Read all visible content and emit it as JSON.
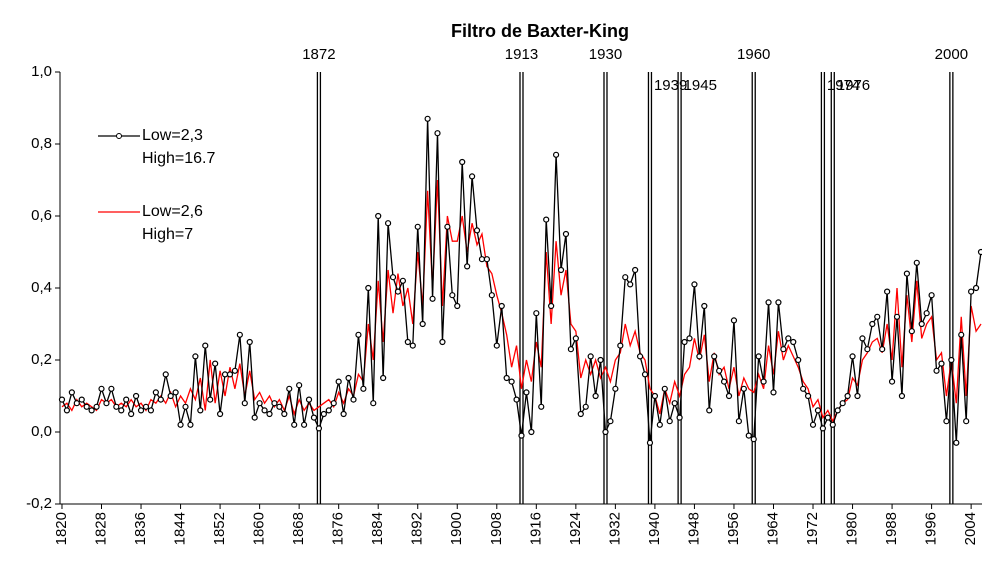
{
  "chart_data": {
    "type": "line",
    "title": "Filtro de Baxter-King",
    "x": [
      1820,
      1821,
      1822,
      1823,
      1824,
      1825,
      1826,
      1827,
      1828,
      1829,
      1830,
      1831,
      1832,
      1833,
      1834,
      1835,
      1836,
      1837,
      1838,
      1839,
      1840,
      1841,
      1842,
      1843,
      1844,
      1845,
      1846,
      1847,
      1848,
      1849,
      1850,
      1851,
      1852,
      1853,
      1854,
      1855,
      1856,
      1857,
      1858,
      1859,
      1860,
      1861,
      1862,
      1863,
      1864,
      1865,
      1866,
      1867,
      1868,
      1869,
      1870,
      1871,
      1872,
      1873,
      1874,
      1875,
      1876,
      1877,
      1878,
      1879,
      1880,
      1881,
      1882,
      1883,
      1884,
      1885,
      1886,
      1887,
      1888,
      1889,
      1890,
      1891,
      1892,
      1893,
      1894,
      1895,
      1896,
      1897,
      1898,
      1899,
      1900,
      1901,
      1902,
      1903,
      1904,
      1905,
      1906,
      1907,
      1908,
      1909,
      1910,
      1911,
      1912,
      1913,
      1914,
      1915,
      1916,
      1917,
      1918,
      1919,
      1920,
      1921,
      1922,
      1923,
      1924,
      1925,
      1926,
      1927,
      1928,
      1929,
      1930,
      1931,
      1932,
      1933,
      1934,
      1935,
      1936,
      1937,
      1938,
      1939,
      1940,
      1941,
      1942,
      1943,
      1944,
      1945,
      1946,
      1947,
      1948,
      1949,
      1950,
      1951,
      1952,
      1953,
      1954,
      1955,
      1956,
      1957,
      1958,
      1959,
      1960,
      1961,
      1962,
      1963,
      1964,
      1965,
      1966,
      1967,
      1968,
      1969,
      1970,
      1971,
      1972,
      1973,
      1974,
      1975,
      1976,
      1977,
      1978,
      1979,
      1980,
      1981,
      1982,
      1983,
      1984,
      1985,
      1986,
      1987,
      1988,
      1989,
      1990,
      1991,
      1992,
      1993,
      1994,
      1995,
      1996,
      1997,
      1998,
      1999,
      2000,
      2001,
      2002,
      2003,
      2004,
      2005,
      2006
    ],
    "series": [
      {
        "name": "Low=2,3\nHigh=16.7",
        "color": "#000000",
        "markers": true,
        "values": [
          0.09,
          0.06,
          0.11,
          0.08,
          0.09,
          0.07,
          0.06,
          0.07,
          0.12,
          0.08,
          0.12,
          0.07,
          0.06,
          0.09,
          0.05,
          0.1,
          0.06,
          0.07,
          0.06,
          0.11,
          0.09,
          0.16,
          0.1,
          0.11,
          0.02,
          0.07,
          0.02,
          0.21,
          0.06,
          0.24,
          0.09,
          0.19,
          0.05,
          0.16,
          0.16,
          0.17,
          0.27,
          0.08,
          0.25,
          0.04,
          0.08,
          0.06,
          0.05,
          0.08,
          0.07,
          0.05,
          0.12,
          0.02,
          0.13,
          0.02,
          0.09,
          0.04,
          0.01,
          0.05,
          0.06,
          0.08,
          0.14,
          0.05,
          0.15,
          0.09,
          0.27,
          0.12,
          0.4,
          0.08,
          0.6,
          0.15,
          0.58,
          0.43,
          0.39,
          0.42,
          0.25,
          0.24,
          0.57,
          0.3,
          0.87,
          0.37,
          0.83,
          0.25,
          0.57,
          0.38,
          0.35,
          0.75,
          0.46,
          0.71,
          0.56,
          0.48,
          0.48,
          0.38,
          0.24,
          0.35,
          0.15,
          0.14,
          0.09,
          -0.01,
          0.11,
          0.0,
          0.33,
          0.07,
          0.59,
          0.35,
          0.77,
          0.45,
          0.55,
          0.23,
          0.26,
          0.05,
          0.07,
          0.21,
          0.1,
          0.2,
          0.0,
          0.03,
          0.12,
          0.24,
          0.43,
          0.41,
          0.45,
          0.21,
          0.16,
          -0.03,
          0.1,
          0.02,
          0.12,
          0.03,
          0.08,
          0.04,
          0.25,
          0.26,
          0.41,
          0.21,
          0.35,
          0.06,
          0.21,
          0.17,
          0.14,
          0.1,
          0.31,
          0.03,
          0.12,
          -0.01,
          -0.02,
          0.21,
          0.14,
          0.36,
          0.11,
          0.36,
          0.23,
          0.26,
          0.25,
          0.2,
          0.12,
          0.1,
          0.02,
          0.06,
          0.01,
          0.04,
          0.02,
          0.06,
          0.08,
          0.1,
          0.21,
          0.1,
          0.26,
          0.23,
          0.3,
          0.32,
          0.23,
          0.39,
          0.14,
          0.32,
          0.1,
          0.44,
          0.28,
          0.47,
          0.3,
          0.33,
          0.38,
          0.17,
          0.19,
          0.03,
          0.2,
          -0.03,
          0.27,
          0.03,
          0.39,
          0.4,
          0.5
        ]
      },
      {
        "name": "Low=2,6\nHigh=7",
        "color": "#ff0000",
        "markers": false,
        "values": [
          0.07,
          0.08,
          0.06,
          0.09,
          0.07,
          0.08,
          0.07,
          0.06,
          0.09,
          0.08,
          0.09,
          0.07,
          0.08,
          0.07,
          0.09,
          0.07,
          0.08,
          0.06,
          0.09,
          0.08,
          0.1,
          0.08,
          0.11,
          0.07,
          0.1,
          0.08,
          0.12,
          0.09,
          0.15,
          0.06,
          0.2,
          0.08,
          0.17,
          0.1,
          0.18,
          0.12,
          0.19,
          0.1,
          0.17,
          0.09,
          0.11,
          0.08,
          0.1,
          0.07,
          0.09,
          0.06,
          0.1,
          0.05,
          0.09,
          0.06,
          0.08,
          0.06,
          0.07,
          0.08,
          0.09,
          0.07,
          0.11,
          0.08,
          0.12,
          0.1,
          0.16,
          0.14,
          0.3,
          0.2,
          0.42,
          0.25,
          0.45,
          0.33,
          0.44,
          0.35,
          0.4,
          0.3,
          0.5,
          0.35,
          0.67,
          0.4,
          0.7,
          0.35,
          0.6,
          0.53,
          0.53,
          0.6,
          0.5,
          0.58,
          0.52,
          0.55,
          0.46,
          0.44,
          0.38,
          0.33,
          0.27,
          0.18,
          0.24,
          0.12,
          0.2,
          0.14,
          0.25,
          0.18,
          0.5,
          0.3,
          0.53,
          0.38,
          0.45,
          0.3,
          0.28,
          0.15,
          0.2,
          0.16,
          0.2,
          0.15,
          0.18,
          0.14,
          0.2,
          0.22,
          0.3,
          0.24,
          0.28,
          0.22,
          0.2,
          0.12,
          0.1,
          0.05,
          0.12,
          0.08,
          0.14,
          0.1,
          0.16,
          0.18,
          0.26,
          0.2,
          0.27,
          0.14,
          0.22,
          0.16,
          0.18,
          0.12,
          0.18,
          0.1,
          0.15,
          0.12,
          0.11,
          0.16,
          0.12,
          0.24,
          0.16,
          0.28,
          0.2,
          0.24,
          0.21,
          0.18,
          0.14,
          0.12,
          0.07,
          0.09,
          0.04,
          0.06,
          0.03,
          0.06,
          0.08,
          0.09,
          0.15,
          0.13,
          0.2,
          0.22,
          0.25,
          0.26,
          0.22,
          0.3,
          0.2,
          0.4,
          0.18,
          0.38,
          0.25,
          0.42,
          0.26,
          0.3,
          0.32,
          0.2,
          0.22,
          0.1,
          0.2,
          0.08,
          0.32,
          0.1,
          0.35,
          0.28,
          0.3
        ]
      }
    ],
    "events": [
      1872,
      1913,
      1930,
      1939,
      1945,
      1960,
      1974,
      1976,
      2000
    ],
    "xlim": [
      1819.6,
      2006.2
    ],
    "xticks": [
      1820,
      1828,
      1836,
      1844,
      1852,
      1860,
      1868,
      1876,
      1884,
      1892,
      1900,
      1908,
      1916,
      1924,
      1932,
      1940,
      1948,
      1956,
      1964,
      1972,
      1980,
      1988,
      1996,
      2004
    ],
    "ylim": [
      -0.2,
      1.0
    ],
    "yticks": [
      {
        "value": -0.2,
        "label": "-0,2"
      },
      {
        "value": 0,
        "label": "0,0"
      },
      {
        "value": 0.2,
        "label": "0,2"
      },
      {
        "value": 0.4,
        "label": "0,4"
      },
      {
        "value": 0.6,
        "label": "0,6"
      },
      {
        "value": 0.8,
        "label": "0,8"
      },
      {
        "value": 1.0,
        "label": "1,0"
      }
    ],
    "grid": false
  }
}
